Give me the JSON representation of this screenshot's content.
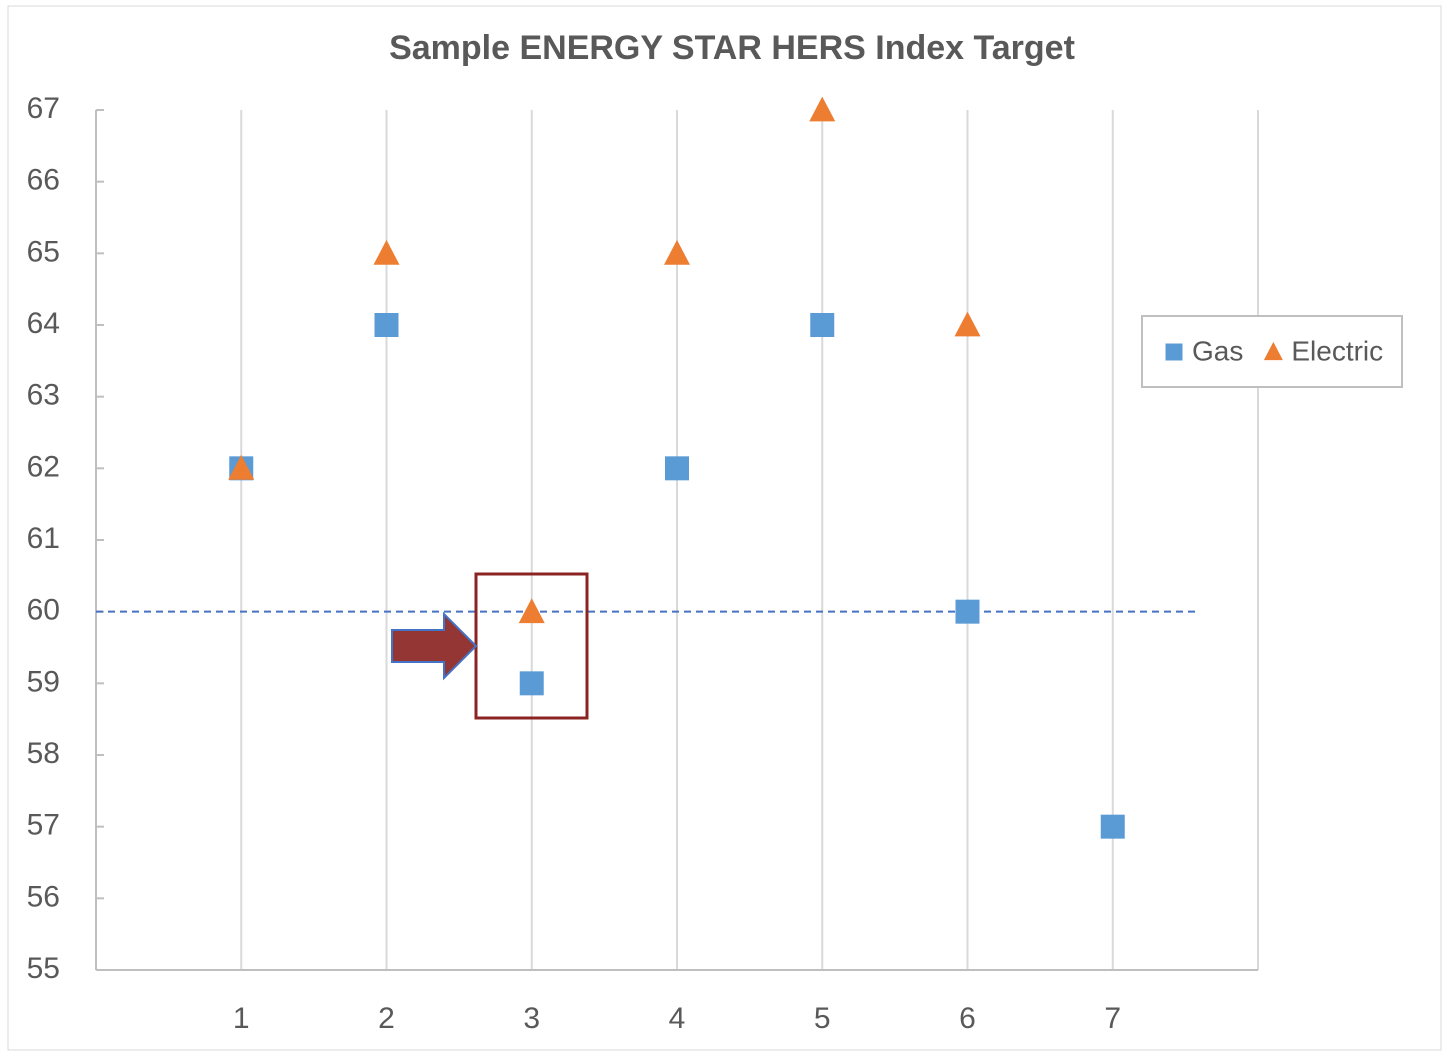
{
  "chart_data": {
    "type": "scatter",
    "title": "Sample ENERGY STAR HERS Index Target",
    "x": [
      1,
      2,
      3,
      4,
      5,
      6,
      7
    ],
    "series": [
      {
        "name": "Gas",
        "color": "#5b9bd5",
        "marker": "square",
        "values": [
          62,
          64,
          59,
          62,
          64,
          60,
          57
        ]
      },
      {
        "name": "Electric",
        "color": "#ed7d31",
        "marker": "triangle",
        "values": [
          62,
          65,
          60,
          65,
          67,
          64,
          null
        ]
      }
    ],
    "xlim": [
      0,
      8
    ],
    "xticks": [
      1,
      2,
      3,
      4,
      5,
      6,
      7
    ],
    "ylim": [
      55,
      67
    ],
    "yticks": [
      55,
      56,
      57,
      58,
      59,
      60,
      61,
      62,
      63,
      64,
      65,
      66,
      67
    ],
    "reference_line": 60,
    "grid": "x",
    "legend": "right"
  }
}
